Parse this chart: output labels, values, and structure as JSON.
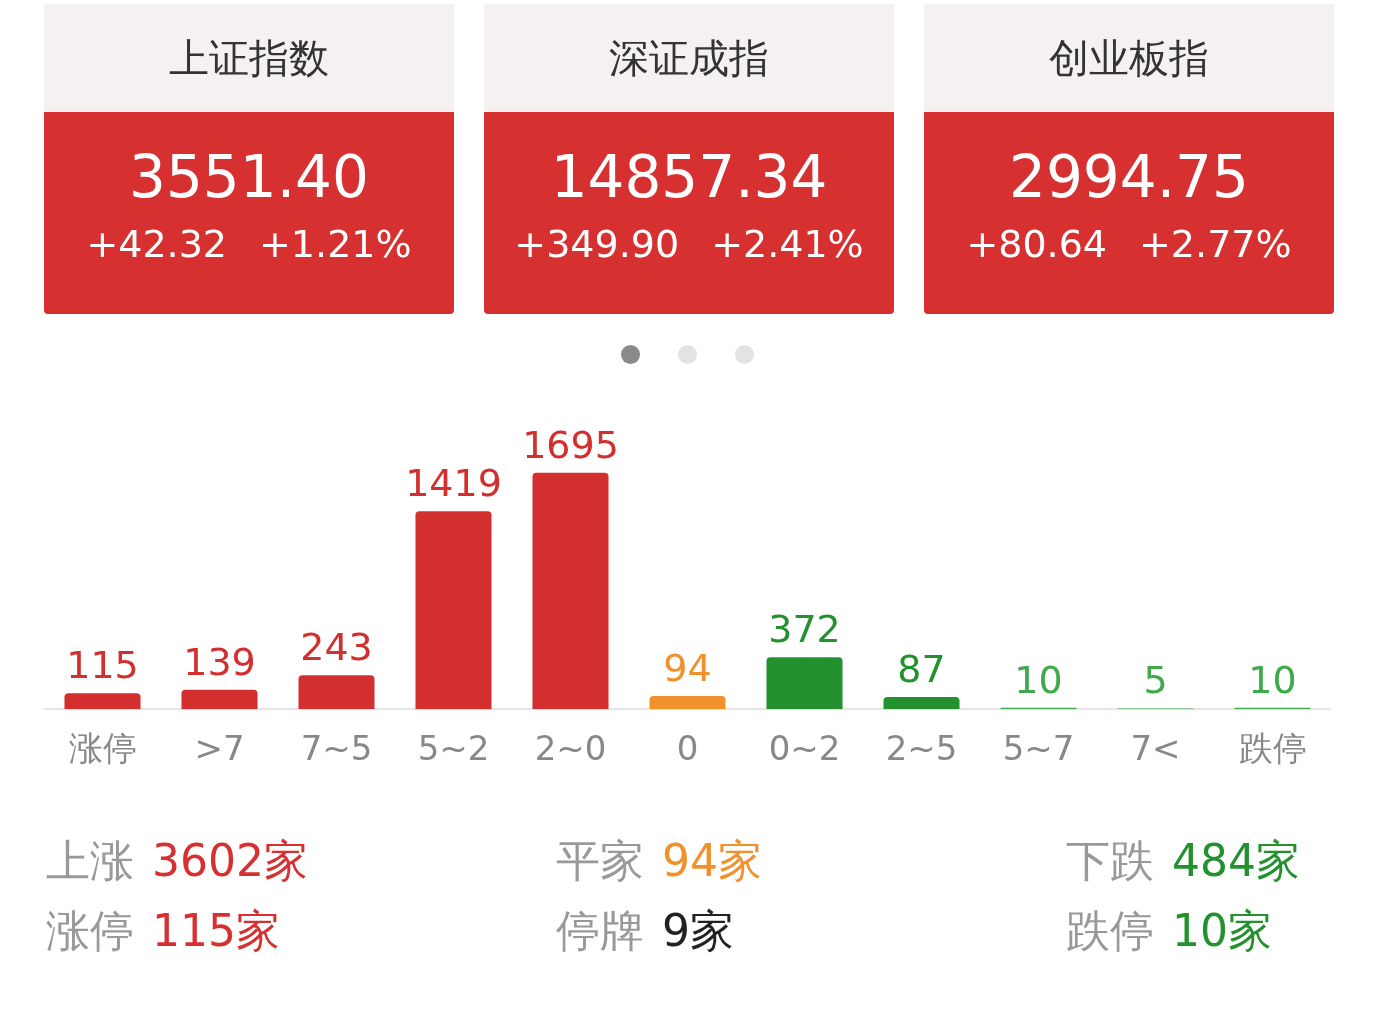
{
  "chart_data": [
    {
      "type": "other",
      "title": "上证指数",
      "annotations": [
        "3551.40",
        "+42.32",
        "+1.21%"
      ]
    },
    {
      "type": "other",
      "title": "深证成指",
      "annotations": [
        "14857.34",
        "+349.90",
        "+2.41%"
      ]
    },
    {
      "type": "other",
      "title": "创业板指",
      "annotations": [
        "2994.75",
        "+80.64",
        "+2.77%"
      ]
    },
    {
      "type": "bar",
      "categories": [
        "涨停",
        ">7",
        "7~5",
        "5~2",
        "2~0",
        "0",
        "0~2",
        "2~5",
        "5~7",
        "7<",
        "跌停"
      ],
      "values": [
        115,
        139,
        243,
        1419,
        1695,
        94,
        372,
        87,
        10,
        5,
        10
      ],
      "colors": [
        "#d32f2f",
        "#d32f2f",
        "#d32f2f",
        "#d32f2f",
        "#d32f2f",
        "#f0912e",
        "#24912f",
        "#24912f",
        "#3fa94c",
        "#3fa94c",
        "#3fa94c"
      ],
      "data_labels": true,
      "grid": false,
      "legend": false
    },
    {
      "type": "other",
      "annotations": [
        "上涨",
        "3602家",
        "平家",
        "94家",
        "下跌",
        "484家",
        "涨停",
        "115家",
        "停牌",
        "9家",
        "跌停",
        "10家"
      ]
    }
  ]
}
